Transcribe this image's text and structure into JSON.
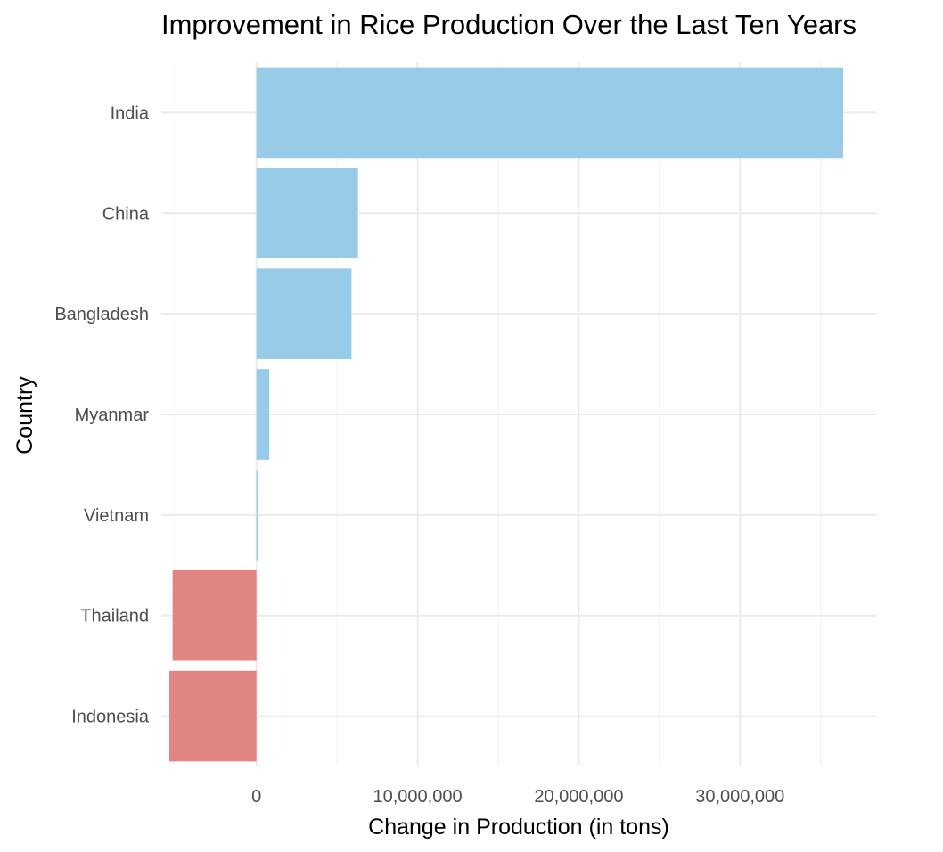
{
  "chart_data": {
    "type": "bar",
    "orientation": "horizontal",
    "title": "Improvement in Rice Production Over the Last Ten Years",
    "xlabel": "Change in Production (in tons)",
    "ylabel": "Country",
    "categories": [
      "India",
      "China",
      "Bangladesh",
      "Myanmar",
      "Vietnam",
      "Thailand",
      "Indonesia"
    ],
    "values": [
      36400000,
      6300000,
      5900000,
      800000,
      100000,
      -5200000,
      -5400000
    ],
    "xlim": [
      -5900000,
      38500000
    ],
    "xticks": [
      0,
      10000000,
      20000000,
      30000000
    ],
    "xtick_labels": [
      "0",
      "10,000,000",
      "20,000,000",
      "30,000,000"
    ],
    "grid": true,
    "legend": "none",
    "colors": {
      "positive": "#97cbe7",
      "negative": "#e08581"
    }
  }
}
